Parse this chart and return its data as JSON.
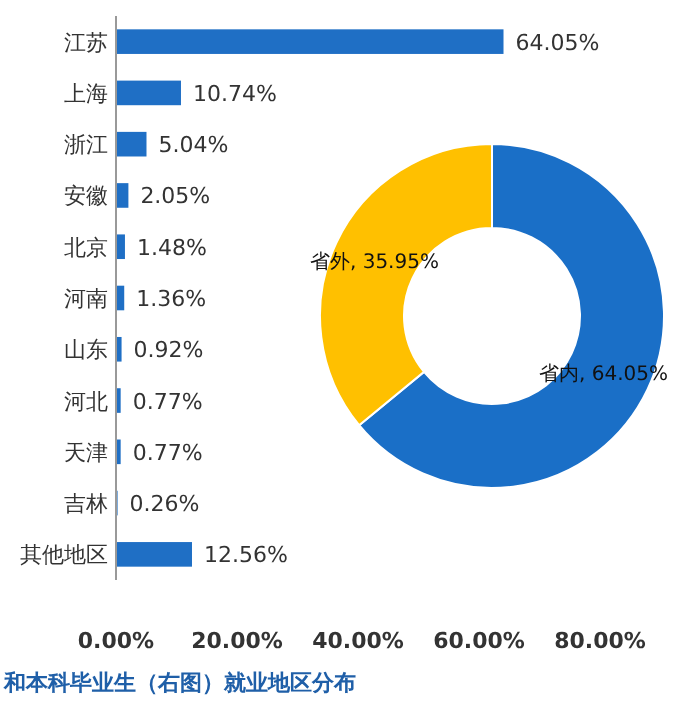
{
  "chart_data": [
    {
      "type": "bar",
      "orientation": "horizontal",
      "title": "和本科毕业生（右图）就业地区分布",
      "categories": [
        "江苏",
        "上海",
        "浙江",
        "安徽",
        "北京",
        "河南",
        "山东",
        "河北",
        "天津",
        "吉林",
        "其他地区"
      ],
      "values": [
        64.05,
        10.74,
        5.04,
        2.05,
        1.48,
        1.36,
        0.92,
        0.77,
        0.77,
        0.26,
        12.56
      ],
      "value_labels": [
        "64.05%",
        "10.74%",
        "5.04%",
        "2.05%",
        "1.48%",
        "1.36%",
        "0.92%",
        "0.77%",
        "0.77%",
        "0.26%",
        "12.56%"
      ],
      "color": "#1f6fc5",
      "xlim": [
        0,
        80
      ],
      "xticks": [
        {
          "value": 0,
          "label": "0.00%"
        },
        {
          "value": 20,
          "label": "20.00%"
        },
        {
          "value": 40,
          "label": "40.00%"
        },
        {
          "value": 60,
          "label": "60.00%"
        },
        {
          "value": 80,
          "label": "80.00%"
        }
      ],
      "grid": false
    },
    {
      "type": "donut",
      "categories": [
        "省内",
        "省外"
      ],
      "values": [
        64.05,
        35.95
      ],
      "value_labels": [
        "64.05%",
        "35.95%"
      ],
      "colors": [
        "#1a6fc7",
        "#ffc000"
      ]
    }
  ]
}
